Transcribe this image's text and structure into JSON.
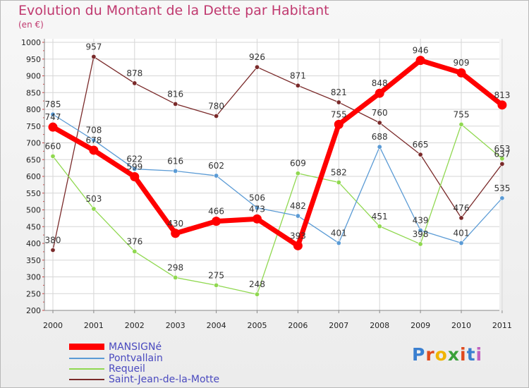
{
  "header": {
    "title": "Evolution du Montant de la Dette par Habitant",
    "subtitle": "(en €)"
  },
  "brand": {
    "logo_text": "Proxiti",
    "letter_colors": [
      "#3a7fd0",
      "#e04a1e",
      "#f0b400",
      "#3aa03a",
      "#e04a1e",
      "#3a7fd0",
      "#c060c0"
    ]
  },
  "chart_data": {
    "type": "line",
    "title": "Evolution du Montant de la Dette par Habitant",
    "subtitle": "(en €)",
    "xlabel": "",
    "ylabel": "",
    "x": [
      "2000",
      "2001",
      "2002",
      "2003",
      "2004",
      "2005",
      "2006",
      "2007",
      "2008",
      "2009",
      "2010",
      "2011"
    ],
    "ylim": [
      200,
      1000
    ],
    "yticks": [
      200,
      250,
      300,
      350,
      400,
      450,
      500,
      550,
      600,
      650,
      700,
      750,
      800,
      850,
      900,
      950,
      1000
    ],
    "grid": true,
    "legend_position": "bottom-left",
    "series": [
      {
        "name": "MANSIGNé",
        "color": "#ff0000",
        "values": [
          747,
          678,
          599,
          430,
          466,
          473,
          393,
          755,
          848,
          946,
          909,
          813
        ],
        "labels": [
          "747",
          "678",
          "599",
          "430",
          "466",
          "473",
          "393",
          "755",
          "848",
          "946",
          "909",
          "813"
        ]
      },
      {
        "name": "Pontvallain",
        "color": "#5b9bd5",
        "values": [
          785,
          708,
          622,
          616,
          602,
          506,
          482,
          401,
          688,
          439,
          401,
          535
        ],
        "labels": [
          "785",
          "708",
          "622",
          "616",
          "602",
          "506",
          "482",
          "401",
          "688",
          "439",
          "401",
          "535"
        ]
      },
      {
        "name": "Requeil",
        "color": "#90d850",
        "values": [
          660,
          503,
          376,
          298,
          275,
          248,
          609,
          582,
          451,
          398,
          755,
          653
        ],
        "labels": [
          "660",
          "503",
          "376",
          "298",
          "275",
          "248",
          "609",
          "582",
          "451",
          "398",
          "755",
          "653"
        ]
      },
      {
        "name": "Saint-Jean-de-la-Motte",
        "color": "#7a2a2a",
        "values": [
          380,
          957,
          878,
          816,
          780,
          926,
          871,
          821,
          760,
          665,
          476,
          637
        ],
        "labels": [
          "380",
          "957",
          "878",
          "816",
          "780",
          "926",
          "871",
          "821",
          "760",
          "665",
          "476",
          "637"
        ]
      }
    ]
  }
}
